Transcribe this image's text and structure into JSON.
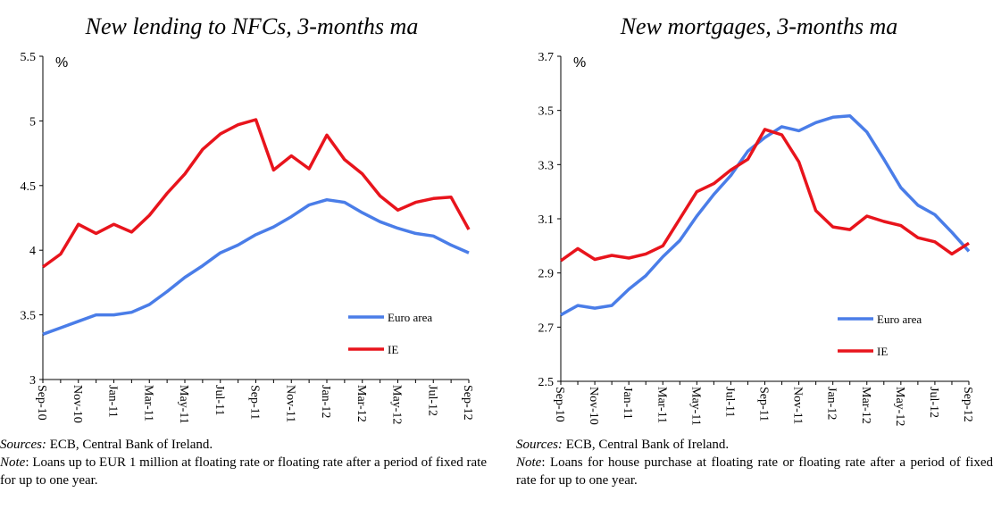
{
  "chart_data": [
    {
      "type": "line",
      "title": "New lending to NFCs, 3-months ma",
      "unit_label": "%",
      "categories": [
        "Sep-10",
        null,
        "Nov-10",
        null,
        "Jan-11",
        null,
        "Mar-11",
        null,
        "May-11",
        null,
        "Jul-11",
        null,
        "Sep-11",
        null,
        "Nov-11",
        null,
        "Jan-12",
        null,
        "Mar-12",
        null,
        "May-12",
        null,
        "Jul-12",
        null,
        "Sep-12"
      ],
      "series": [
        {
          "name": "Euro area",
          "color": "#4a7de8",
          "values": [
            3.35,
            3.4,
            3.45,
            3.5,
            3.5,
            3.52,
            3.58,
            3.68,
            3.79,
            3.88,
            3.98,
            4.04,
            4.12,
            4.18,
            4.26,
            4.35,
            4.39,
            4.37,
            4.29,
            4.22,
            4.17,
            4.13,
            4.11,
            4.04,
            3.98
          ]
        },
        {
          "name": "IE",
          "color": "#e8141c",
          "values": [
            3.87,
            3.97,
            4.2,
            4.13,
            4.2,
            4.14,
            4.27,
            4.44,
            4.59,
            4.78,
            4.9,
            4.97,
            5.01,
            4.62,
            4.73,
            4.63,
            4.89,
            4.7,
            4.59,
            4.42,
            4.31,
            4.37,
            4.4,
            4.41,
            4.16
          ]
        }
      ],
      "ylim": [
        3,
        5.5
      ],
      "yticks": [
        3,
        3.5,
        4,
        4.5,
        5,
        5.5
      ],
      "grid": false,
      "legend_position": "lower right",
      "source_label": "Sources:",
      "source": "ECB, Central Bank of Ireland.",
      "note_label": "Note",
      "note": ": Loans up to EUR 1 million at floating rate or floating rate after a period of fixed rate for up to one year."
    },
    {
      "type": "line",
      "title": "New mortgages, 3-months ma",
      "unit_label": "%",
      "categories": [
        "Sep-10",
        null,
        "Nov-10",
        null,
        "Jan-11",
        null,
        "Mar-11",
        null,
        "May-11",
        null,
        "Jul-11",
        null,
        "Sep-11",
        null,
        "Nov-11",
        null,
        "Jan-12",
        null,
        "Mar-12",
        null,
        "May-12",
        null,
        "Jul-12",
        null,
        "Sep-12"
      ],
      "series": [
        {
          "name": "Euro area",
          "color": "#4a7de8",
          "values": [
            2.745,
            2.78,
            2.77,
            2.78,
            2.84,
            2.89,
            2.96,
            3.02,
            3.11,
            3.19,
            3.26,
            3.35,
            3.4,
            3.44,
            3.425,
            3.455,
            3.475,
            3.48,
            3.42,
            3.32,
            3.215,
            3.15,
            3.115,
            3.05,
            2.98
          ]
        },
        {
          "name": "IE",
          "color": "#e8141c",
          "values": [
            2.945,
            2.99,
            2.95,
            2.965,
            2.955,
            2.97,
            3.0,
            3.1,
            3.2,
            3.23,
            3.28,
            3.32,
            3.43,
            3.41,
            3.31,
            3.13,
            3.07,
            3.06,
            3.11,
            3.09,
            3.075,
            3.03,
            3.015,
            2.97,
            3.01
          ]
        }
      ],
      "ylim": [
        2.5,
        3.7
      ],
      "yticks": [
        2.5,
        2.7,
        2.9,
        3.1,
        3.3,
        3.5,
        3.7
      ],
      "grid": false,
      "legend_position": "lower right",
      "source_label": "Sources:",
      "source": "ECB, Central Bank of Ireland.",
      "note_label": "Note",
      "note": ": Loans for house purchase at floating rate or floating rate after a period of fixed rate for up to one year."
    }
  ]
}
